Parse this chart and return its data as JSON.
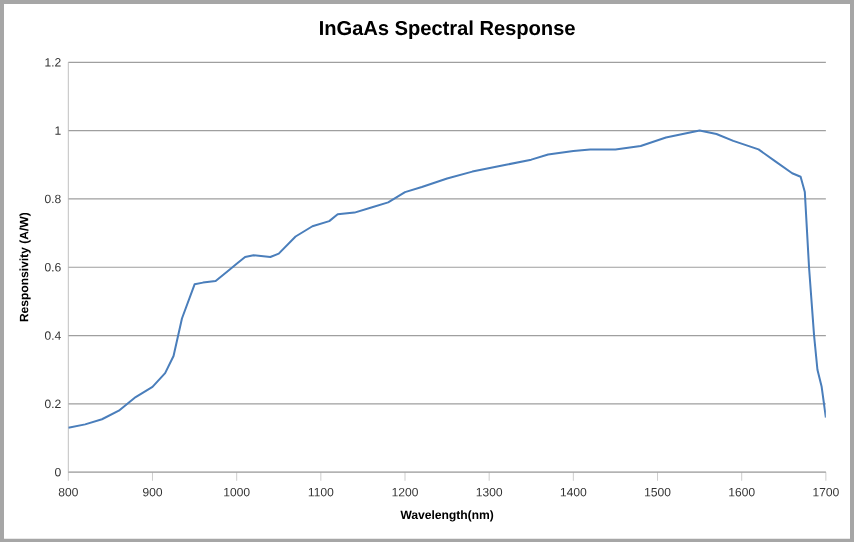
{
  "chart_data": {
    "type": "line",
    "title": "InGaAs Spectral Response",
    "xlabel": "Wavelength(nm)",
    "ylabel": "Responsivity (A/W)",
    "x": [
      800,
      820,
      840,
      860,
      880,
      900,
      915,
      925,
      935,
      950,
      960,
      975,
      990,
      1000,
      1010,
      1020,
      1040,
      1050,
      1070,
      1090,
      1110,
      1120,
      1140,
      1160,
      1180,
      1200,
      1220,
      1250,
      1280,
      1320,
      1350,
      1370,
      1400,
      1420,
      1450,
      1480,
      1510,
      1530,
      1550,
      1570,
      1590,
      1620,
      1640,
      1660,
      1670,
      1675,
      1680,
      1686,
      1690,
      1695,
      1700
    ],
    "series": [
      {
        "color": "#4a7ebb",
        "values": [
          0.13,
          0.14,
          0.155,
          0.18,
          0.22,
          0.25,
          0.29,
          0.34,
          0.45,
          0.55,
          0.555,
          0.56,
          0.59,
          0.61,
          0.63,
          0.635,
          0.63,
          0.64,
          0.69,
          0.72,
          0.735,
          0.755,
          0.76,
          0.775,
          0.79,
          0.82,
          0.835,
          0.86,
          0.88,
          0.9,
          0.915,
          0.93,
          0.94,
          0.945,
          0.945,
          0.955,
          0.98,
          0.99,
          1.0,
          0.99,
          0.97,
          0.945,
          0.91,
          0.875,
          0.865,
          0.82,
          0.6,
          0.4,
          0.3,
          0.25,
          0.16
        ]
      }
    ],
    "xlim": [
      800,
      1700
    ],
    "ylim": [
      0,
      1.2
    ],
    "xticks": [
      800,
      900,
      1000,
      1100,
      1200,
      1300,
      1400,
      1500,
      1600,
      1700
    ],
    "yticks": [
      0,
      0.2,
      0.4,
      0.6,
      0.8,
      1,
      1.2
    ],
    "grid": "y",
    "marker": "none",
    "line_style": "solid"
  }
}
